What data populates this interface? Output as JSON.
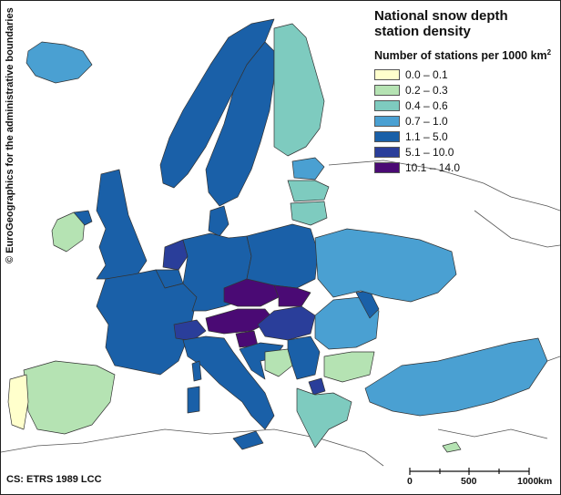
{
  "title_line1": "National snow depth",
  "title_line2": "station density",
  "legend": {
    "heading": "Number of stations per 1000 km",
    "heading_sup": "2",
    "classes": [
      {
        "label": "0.0 – 0.1",
        "color": "#ffffcc"
      },
      {
        "label": "0.2 – 0.3",
        "color": "#b5e3b3"
      },
      {
        "label": "0.4 – 0.6",
        "color": "#7ecbbf"
      },
      {
        "label": "0.7 – 1.0",
        "color": "#4aa0d2"
      },
      {
        "label": "1.1 – 5.0",
        "color": "#1a60a8"
      },
      {
        "label": "5.1 – 10.0",
        "color": "#2a3e9a"
      },
      {
        "label": "10.1 – 14.0",
        "color": "#4a0a74"
      }
    ]
  },
  "credit": "© EuroGeographics for the administrative boundaries",
  "crs": "CS: ETRS 1989 LCC",
  "scalebar": {
    "labels": [
      "0",
      "500",
      "1000"
    ],
    "unit": "km"
  },
  "colors": {
    "land_nodata": "#ffffff",
    "border": "#333333",
    "no_data_outline": "#555555"
  }
}
